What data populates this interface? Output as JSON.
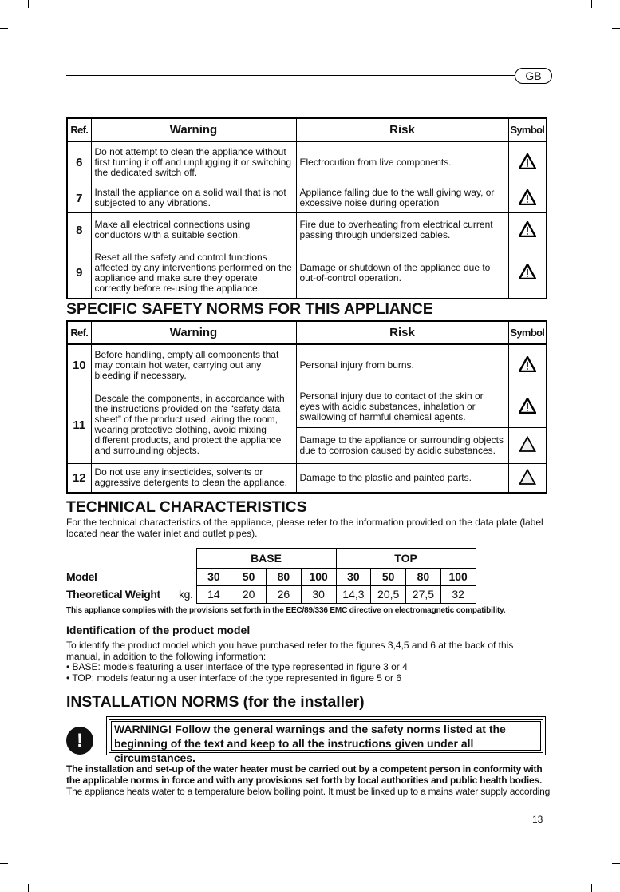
{
  "header": {
    "lang_badge": "GB"
  },
  "columns": {
    "ref": "Ref.",
    "warning": "Warning",
    "risk": "Risk",
    "symbol": "Symbol"
  },
  "table1": [
    {
      "ref": "6",
      "warning": "Do not attempt to clean the appliance without first turning it off and unplugging it or switching the dedicated switch off.",
      "risks": [
        {
          "text": "Electrocution from live components.",
          "symbol": "warning-exclamation-triangle"
        }
      ]
    },
    {
      "ref": "7",
      "warning": "Install the appliance on a solid wall that is not subjected to any vibrations.",
      "risks": [
        {
          "text": "Appliance falling due to the wall giving way, or excessive noise during operation",
          "symbol": "warning-exclamation-triangle"
        }
      ]
    },
    {
      "ref": "8",
      "warning": "Make all electrical connections using conductors with a suitable section.",
      "risks": [
        {
          "text": "Fire due to overheating from electrical current passing through undersized cables.",
          "symbol": "warning-exclamation-triangle"
        }
      ]
    },
    {
      "ref": "9",
      "warning": "Reset all the safety and control functions affected by any interventions performed on the appliance and make sure they operate correctly before re-using the appliance.",
      "risks": [
        {
          "text": "Damage or shutdown of the appliance due to out-of-control operation.",
          "symbol": "warning-exclamation-triangle"
        }
      ]
    }
  ],
  "specific_heading": "SPECIFIC SAFETY NORMS FOR THIS APPLIANCE",
  "table2": [
    {
      "ref": "10",
      "warning": "Before handling, empty all components that may contain hot water, carrying out any bleeding if necessary.",
      "risks": [
        {
          "text": "Personal injury from burns.",
          "symbol": "warning-exclamation-triangle"
        }
      ]
    },
    {
      "ref": "11",
      "warning": "Descale the components, in accordance with the instructions provided on the “safety data sheet” of the product used, airing the room, wearing protective clothing, avoid mixing different products, and protect the appliance and surrounding objects.",
      "risks": [
        {
          "text": "Personal injury due to contact of the skin or eyes with acidic substances, inhalation or swallowing of harmful chemical agents.",
          "symbol": "warning-exclamation-triangle"
        },
        {
          "text": "Damage to the appliance or surrounding objects due to corrosion caused by acidic substances.",
          "symbol": "caution-triangle"
        }
      ]
    },
    {
      "ref": "12",
      "warning": "Do not use any insecticides, solvents or aggressive detergents to clean the appliance.",
      "risks": [
        {
          "text": "Damage to the plastic and painted parts.",
          "symbol": "caution-triangle"
        }
      ]
    }
  ],
  "tech": {
    "heading": "TECHNICAL CHARACTERISTICS",
    "intro": "For the technical characteristics of the appliance, please refer to the information provided on the data plate (label located near the water inlet and outlet pipes).",
    "groups": [
      "BASE",
      "TOP"
    ],
    "model_label": "Model",
    "models": [
      "30",
      "50",
      "80",
      "100",
      "30",
      "50",
      "80",
      "100"
    ],
    "weight_label": "Theoretical Weight",
    "weight_unit": "kg.",
    "weights": [
      "14",
      "20",
      "26",
      "30",
      "14,3",
      "20,5",
      "27,5",
      "32"
    ],
    "compliance": "This appliance complies with the provisions set forth in the EEC/89/336 EMC directive on electromagnetic compatibility."
  },
  "identification": {
    "heading": "Identification of the product model",
    "lines": [
      "To identify the product model which you have purchased refer to the figures 3,4,5 and 6 at the back of this manual, in addition to the following information:",
      "• BASE: models featuring a user interface of the type represented in figure 3 or 4",
      "• TOP: models featuring a user interface of the type represented in figure 5 or 6"
    ]
  },
  "installation": {
    "heading": "INSTALLATION NORMS (for the installer)",
    "warning_icon": "exclamation-circle",
    "warning_icon_text": "!",
    "warning": "WARNING! Follow the general warnings and the safety norms listed at the beginning of the text and keep to all the instructions given under all circumstances.",
    "bold_para": "The installation and set-up of the water heater must be carried out by a competent person in conformity with the applicable norms in force and with any provisions set forth by local authorities and public health bodies.",
    "para": "The appliance heats water to a temperature below boiling point. It must be linked up to a mains water supply according"
  },
  "page_number": "13"
}
